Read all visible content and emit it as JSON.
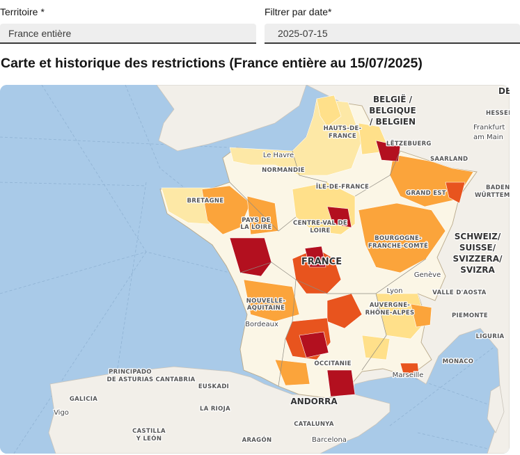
{
  "form": {
    "territoire_label": "Territoire",
    "territoire_required": "*",
    "territoire_value": "France entière",
    "date_label": "Filtrer par date",
    "date_required": "*",
    "date_value": "2025-07-15"
  },
  "section_title": "Carte et historique des restrictions (France entière au 15/07/2025)",
  "map": {
    "colors": {
      "sea": "#a9cae8",
      "land": "#f2efe9",
      "france_base": "#fbf6e6",
      "vigilance": "#fde8a6",
      "alerte": "#ffe08a",
      "alerte_renforcee": "#fba43b",
      "crise": "#e8541e",
      "crise_max": "#b3101f"
    },
    "labels": {
      "belgium": [
        "BELGIË /",
        "BELGIQUE",
        "/ BELGIEN"
      ],
      "germany_de": "DE",
      "hessen": "HESSEN",
      "frankfurt": [
        "Frankfurt",
        "am Main"
      ],
      "luxembourg": "LËTZEBUERG",
      "saarland": "SAARLAND",
      "hauts_de_france": [
        "HAUTS-DE-",
        "FRANCE"
      ],
      "le_havre": "Le Havre",
      "normandie": "NORMANDIE",
      "ile_de_france": "ÎLE-DE-FRANCE",
      "grand_est": "GRAND EST",
      "baden": [
        "BADEN-",
        "WÜRTTEMBE"
      ],
      "bretagne": "BRETAGNE",
      "pays_de_la_loire": [
        "PAYS DE",
        "LA LOIRE"
      ],
      "centre_val_de_loire": [
        "CENTRE-VAL DE",
        "LOIRE"
      ],
      "bourgogne": [
        "BOURGOGNE-",
        "FRANCHE-COMTÉ"
      ],
      "switzerland": [
        "SCHWEIZ/",
        "SUISSE/",
        "SVIZZERA/",
        "SVIZRA"
      ],
      "france": "FRANCE",
      "geneve": "Genève",
      "valle_daosta": "VALLE D'AOSTA",
      "nouvelle_aquitaine": [
        "NOUVELLE-",
        "AQUITAINE"
      ],
      "lyon": "Lyon",
      "auvergne": [
        "AUVERGNE-",
        "RHÔNE-ALPES"
      ],
      "piemonte": "PIEMONTE",
      "bordeaux": "Bordeaux",
      "liguria": "LIGURIA",
      "occitanie": "OCCITANIE",
      "monaco": "MONACO",
      "asturias": [
        "PRINCIPADO",
        "DE ASTURIAS"
      ],
      "cantabria": "CANTABRIA",
      "euskadi": "EUSKADI",
      "marseille": "Marseille",
      "galicia": "GALICIA",
      "andorra": "ANDORRA",
      "la_rioja": "LA RIOJA",
      "vigo": "Vigo",
      "castilla": [
        "CASTILLA",
        "Y LEÓN"
      ],
      "catalunya": "CATALUNYA",
      "aragon": "ARAGÓN",
      "barcelona": "Barcelona"
    }
  }
}
